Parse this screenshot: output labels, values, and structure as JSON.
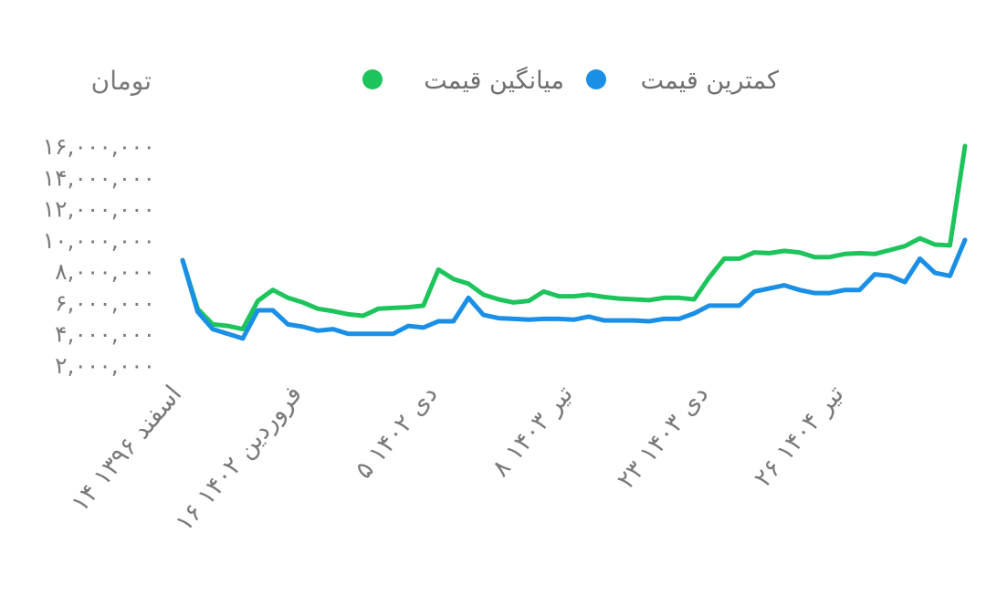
{
  "unit_label": "تومان",
  "colors": {
    "series_avg": "#1dc45b",
    "series_min": "#1a8fe6",
    "text": "#7a7a7a"
  },
  "chart_data": {
    "type": "line",
    "title": "",
    "xlabel": "",
    "ylabel": "تومان",
    "ylim": [
      2000000,
      16000000
    ],
    "grid": false,
    "legend": "top",
    "yticks": [
      16000000,
      14000000,
      12000000,
      10000000,
      8000000,
      6000000,
      4000000,
      2000000
    ],
    "ytick_labels": [
      "۱۶,۰۰۰,۰۰۰",
      "۱۴,۰۰۰,۰۰۰",
      "۱۲,۰۰۰,۰۰۰",
      "۱۰,۰۰۰,۰۰۰",
      "۸,۰۰۰,۰۰۰",
      "۶,۰۰۰,۰۰۰",
      "۴,۰۰۰,۰۰۰",
      "۲,۰۰۰,۰۰۰"
    ],
    "x_labels": [
      "۱۴ اسفند ۱۳۹۶",
      "۱۶ فروردین ۱۴۰۲",
      "۵ دی ۱۴۰۲",
      "۸ تیر ۱۴۰۳",
      "۲۳ دی ۱۴۰۳",
      "۲۶ تیر ۱۴۰۴"
    ],
    "x_label_positions": [
      0,
      8,
      17,
      26,
      35,
      44
    ],
    "series": [
      {
        "name": "میانگین قیمت",
        "color": "#1dc45b",
        "values": [
          8700000,
          5600000,
          4600000,
          4500000,
          4300000,
          6100000,
          6800000,
          6300000,
          6000000,
          5600000,
          5450000,
          5250000,
          5150000,
          5600000,
          5650000,
          5700000,
          5800000,
          8100000,
          7500000,
          7200000,
          6500000,
          6200000,
          6000000,
          6100000,
          6700000,
          6400000,
          6400000,
          6500000,
          6350000,
          6250000,
          6200000,
          6150000,
          6300000,
          6300000,
          6200000,
          7600000,
          8800000,
          8800000,
          9200000,
          9150000,
          9300000,
          9200000,
          8900000,
          8900000,
          9100000,
          9150000,
          9100000,
          9350000,
          9600000,
          10100000,
          9700000,
          9650000,
          16000000
        ]
      },
      {
        "name": "کمترین قیمت",
        "color": "#1a8fe6",
        "values": [
          8700000,
          5400000,
          4300000,
          4000000,
          3700000,
          5500000,
          5500000,
          4600000,
          4450000,
          4200000,
          4300000,
          4000000,
          4000000,
          4000000,
          4000000,
          4500000,
          4400000,
          4800000,
          4800000,
          6300000,
          5200000,
          5000000,
          4950000,
          4900000,
          4950000,
          4950000,
          4900000,
          5100000,
          4850000,
          4850000,
          4850000,
          4800000,
          4950000,
          4950000,
          5300000,
          5800000,
          5800000,
          5800000,
          6700000,
          6900000,
          7100000,
          6800000,
          6600000,
          6600000,
          6800000,
          6800000,
          7800000,
          7700000,
          7300000,
          8800000,
          7900000,
          7700000,
          10000000
        ]
      }
    ]
  }
}
